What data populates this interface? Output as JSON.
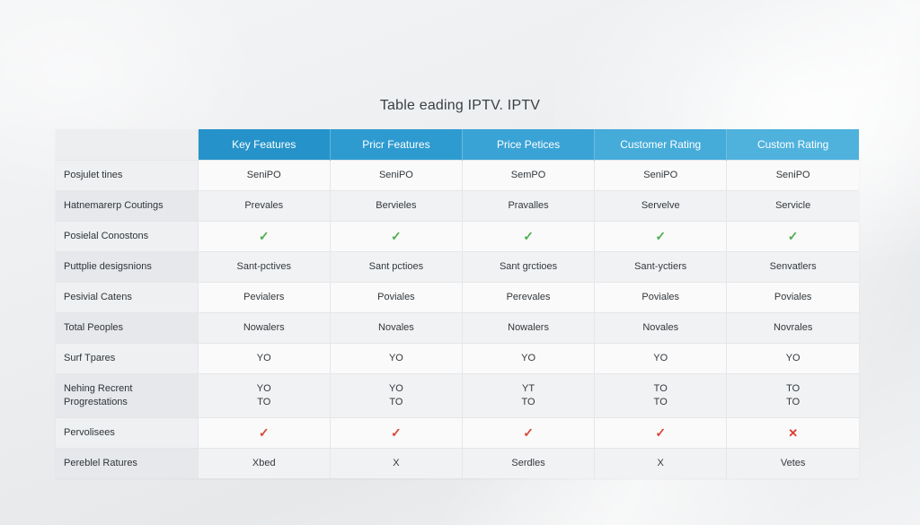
{
  "title": "Table eading IPTV. IPTV",
  "headers": [
    "Key Features",
    "Pricr Features",
    "Price Petices",
    "Customer Rating",
    "Custom Rating"
  ],
  "rows": [
    {
      "label": "Posjulet tines",
      "cells": [
        "SeniPO",
        "SeniPO",
        "SemPO",
        "SeniPO",
        "SeniPO"
      ]
    },
    {
      "label": "Hatnemarerp Coutings",
      "cells": [
        "Prevales",
        "Bervieles",
        "Pravalles",
        "Servelve",
        "Servicle"
      ]
    },
    {
      "label": "Posielal Conostons",
      "cells": [
        "✓",
        "✓",
        "✓",
        "✓",
        "✓"
      ],
      "icon": "check"
    },
    {
      "label": "Puttplie desigsnions",
      "cells": [
        "Sant-pctives",
        "Sant pctioes",
        "Sant grctioes",
        "Sant-yctiers",
        "Senvatlers"
      ]
    },
    {
      "label": "Pesivial Catens",
      "cells": [
        "Pevialers",
        "Poviales",
        "Perevales",
        "Poviales",
        "Poviales"
      ]
    },
    {
      "label": "Total Peoples",
      "cells": [
        "Nowalers",
        "Novales",
        "Nowalers",
        "Novales",
        "Novrales"
      ]
    },
    {
      "label": "Surf Tpares",
      "cells": [
        "YO",
        "YO",
        "YO",
        "YO",
        "YO"
      ]
    },
    {
      "label": "Nehing Recrent",
      "label2": "Progrestations",
      "cells": [
        "YO",
        "YO",
        "YT",
        "TO",
        "TO"
      ],
      "cells2": [
        "TO",
        "TO",
        "TO",
        "TO",
        "TO"
      ]
    },
    {
      "label": "Pervolisees",
      "cells": [
        "✓",
        "✓",
        "✓",
        "✓",
        "✕"
      ],
      "icon": "tick-red"
    },
    {
      "label": "Pereblel Ratures",
      "cells": [
        "Xbed",
        "X",
        "Serdles",
        "X",
        "Vetes"
      ]
    }
  ]
}
